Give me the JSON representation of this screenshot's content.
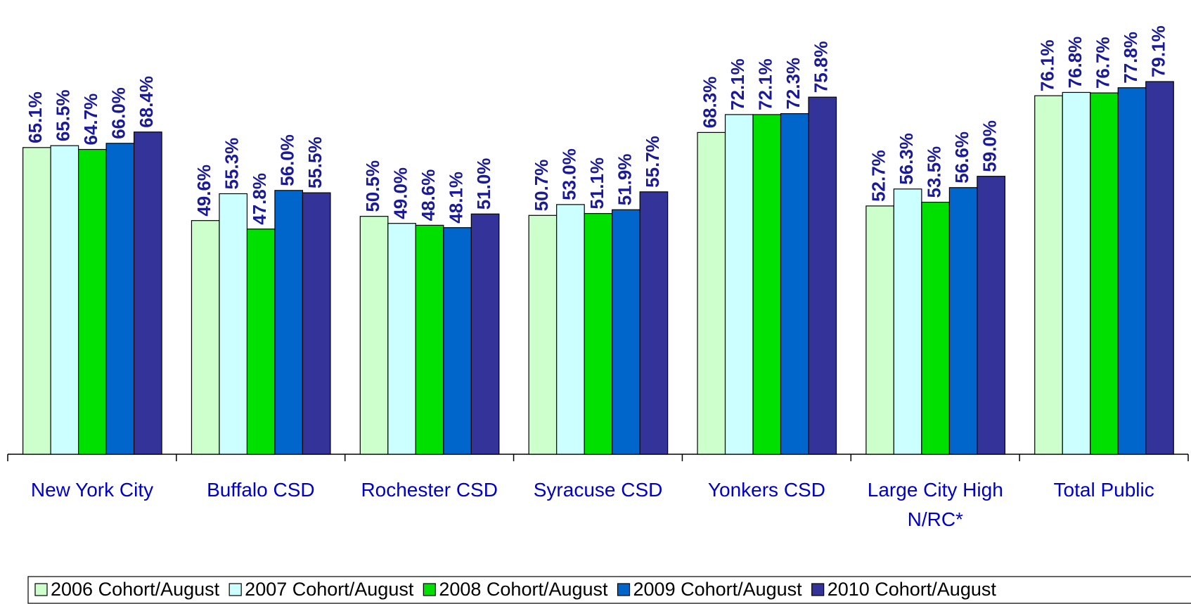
{
  "chart_data": {
    "type": "bar",
    "categories": [
      "New York City",
      "Buffalo CSD",
      "Rochester CSD",
      "Syracuse CSD",
      "Yonkers CSD",
      "Large City High N/RC*",
      "Total Public"
    ],
    "series": [
      {
        "name": "2006 Cohort/August",
        "color": "#ccffcc",
        "values": [
          65.1,
          49.6,
          50.5,
          50.7,
          68.3,
          52.7,
          76.1
        ],
        "value_labels": [
          "65.1%",
          "49.6%",
          "50.5%",
          "50.7%",
          "68.3%",
          "52.7%",
          "76.1%"
        ]
      },
      {
        "name": "2007 Cohort/August",
        "color": "#ccffff",
        "values": [
          65.5,
          55.3,
          49.0,
          53.0,
          72.1,
          56.3,
          76.8
        ],
        "value_labels": [
          "65.5%",
          "55.3%",
          "49.0%",
          "53.0%",
          "72.1%",
          "56.3%",
          "76.8%"
        ]
      },
      {
        "name": "2008 Cohort/August",
        "color": "#00e000",
        "values": [
          64.7,
          47.8,
          48.6,
          51.1,
          72.1,
          53.5,
          76.7
        ],
        "value_labels": [
          "64.7%",
          "47.8%",
          "48.6%",
          "51.1%",
          "72.1%",
          "53.5%",
          "76.7%"
        ]
      },
      {
        "name": "2009 Cohort/August",
        "color": "#0066cc",
        "values": [
          66.0,
          56.0,
          48.1,
          51.9,
          72.3,
          56.6,
          77.8
        ],
        "value_labels": [
          "66.0%",
          "56.0%",
          "48.1%",
          "51.9%",
          "72.3%",
          "56.6%",
          "77.8%"
        ]
      },
      {
        "name": "2010 Cohort/August",
        "color": "#333399",
        "values": [
          68.4,
          55.5,
          51.0,
          55.7,
          75.8,
          59.0,
          79.1
        ],
        "value_labels": [
          "68.4%",
          "55.5%",
          "51.0%",
          "55.7%",
          "75.8%",
          "59.0%",
          "79.1%"
        ]
      }
    ]
  }
}
